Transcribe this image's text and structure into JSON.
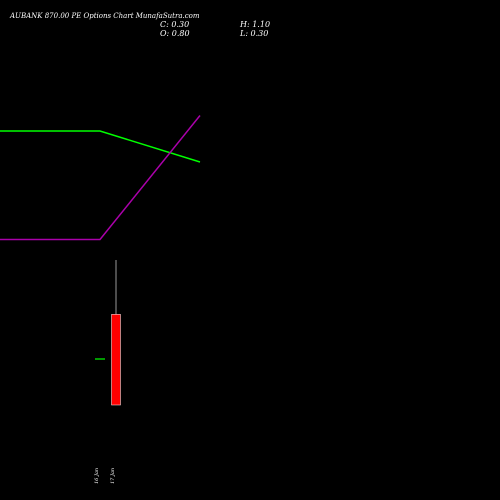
{
  "header": {
    "title": "AUBANK 870.00  PE Options  Chart MunafaSutra.com",
    "close": "C: 0.30",
    "high": "H: 1.10",
    "open": "O: 0.80",
    "low": "L: 0.30"
  },
  "colors": {
    "background": "#000000",
    "green_line": "#00ff00",
    "purple_line": "#aa00aa",
    "candle_down": "#ff0000",
    "doji": "#00ff00",
    "wick": "#ffffff"
  },
  "chart_data": {
    "type": "candlestick",
    "x_ticks": [
      "16 Jan",
      "17 Jan"
    ],
    "candles": [
      {
        "date": "16 Jan",
        "open": 0.3,
        "high": 0.3,
        "low": 0.3,
        "close": 0.3
      },
      {
        "date": "17 Jan",
        "open": 0.8,
        "high": 1.1,
        "low": 0.3,
        "close": 0.3
      }
    ],
    "overlay_lines": [
      {
        "color": "green",
        "values": [
          0.8,
          0.8,
          0.6
        ]
      },
      {
        "color": "purple",
        "values": [
          0.1,
          0.1,
          0.9
        ]
      }
    ]
  }
}
